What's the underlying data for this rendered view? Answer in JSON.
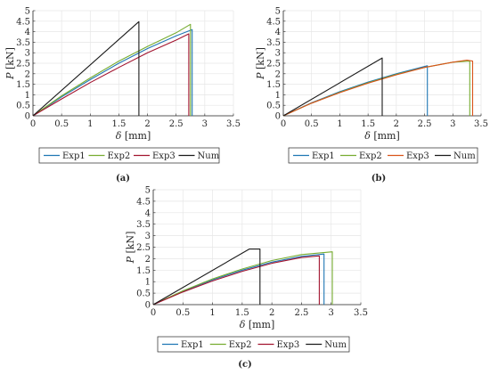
{
  "chart_data": [
    {
      "type": "line",
      "panel_label": "(a)",
      "xlabel_sym": "δ",
      "xlabel_unit": "[mm]",
      "ylabel_sym": "P",
      "ylabel_unit": "[kN]",
      "xlim": [
        0,
        3.5
      ],
      "ylim": [
        0,
        5
      ],
      "xticks": [
        "0",
        "0.5",
        "1",
        "1.5",
        "2",
        "2.5",
        "3",
        "3.5"
      ],
      "yticks": [
        "0",
        "0.5",
        "1",
        "1.5",
        "2",
        "2.5",
        "3",
        "3.5",
        "4",
        "4.5",
        "5"
      ],
      "grid": true,
      "legend_placement": "bottom",
      "series": [
        {
          "name": "Exp1",
          "color": "#1f77b4",
          "x": [
            0,
            0.5,
            1.0,
            1.5,
            2.0,
            2.5,
            2.78,
            2.78
          ],
          "y": [
            0,
            0.9,
            1.72,
            2.5,
            3.2,
            3.8,
            4.1,
            0
          ]
        },
        {
          "name": "Exp2",
          "color": "#77ac30",
          "x": [
            0,
            0.5,
            1.0,
            1.5,
            2.0,
            2.5,
            2.75,
            2.75
          ],
          "y": [
            0,
            0.95,
            1.8,
            2.6,
            3.3,
            3.95,
            4.35,
            0
          ]
        },
        {
          "name": "Exp3",
          "color": "#a2142f",
          "x": [
            0,
            0.5,
            1.0,
            1.5,
            2.0,
            2.5,
            2.72,
            2.72
          ],
          "y": [
            0,
            0.8,
            1.58,
            2.3,
            3.0,
            3.6,
            3.9,
            0
          ]
        },
        {
          "name": "Num",
          "color": "#1a1a1a",
          "x": [
            0,
            1.85,
            1.85
          ],
          "y": [
            0,
            4.48,
            0
          ]
        }
      ]
    },
    {
      "type": "line",
      "panel_label": "(b)",
      "xlabel_sym": "δ",
      "xlabel_unit": "[mm]",
      "ylabel_sym": "P",
      "ylabel_unit": "[kN]",
      "xlim": [
        0,
        3.5
      ],
      "ylim": [
        0,
        5
      ],
      "xticks": [
        "0",
        "0.5",
        "1",
        "1.5",
        "2",
        "2.5",
        "3",
        "3.5"
      ],
      "yticks": [
        "0",
        "0.5",
        "1",
        "1.5",
        "2",
        "2.5",
        "3",
        "3.5",
        "4",
        "4.5",
        "5"
      ],
      "grid": true,
      "legend_placement": "bottom",
      "series": [
        {
          "name": "Exp1",
          "color": "#1f77b4",
          "x": [
            0,
            0.5,
            1.0,
            1.5,
            2.0,
            2.55,
            2.55
          ],
          "y": [
            0,
            0.62,
            1.15,
            1.6,
            2.0,
            2.38,
            0
          ]
        },
        {
          "name": "Exp2",
          "color": "#77ac30",
          "x": [
            0,
            0.5,
            1.0,
            1.5,
            2.0,
            2.5,
            3.0,
            3.3,
            3.3
          ],
          "y": [
            0,
            0.6,
            1.12,
            1.57,
            1.97,
            2.3,
            2.55,
            2.6,
            0
          ]
        },
        {
          "name": "Exp3",
          "color": "#d95319",
          "x": [
            0,
            0.5,
            1.0,
            1.5,
            2.0,
            2.5,
            3.0,
            3.25,
            3.35,
            3.35
          ],
          "y": [
            0,
            0.6,
            1.1,
            1.55,
            1.95,
            2.3,
            2.55,
            2.65,
            2.6,
            0
          ]
        },
        {
          "name": "Num",
          "color": "#1a1a1a",
          "x": [
            0,
            1.75,
            1.75
          ],
          "y": [
            0,
            2.75,
            0
          ]
        }
      ]
    },
    {
      "type": "line",
      "panel_label": "(c)",
      "xlabel_sym": "δ",
      "xlabel_unit": "[mm]",
      "ylabel_sym": "P",
      "ylabel_unit": "[kN]",
      "xlim": [
        0,
        3.5
      ],
      "ylim": [
        0,
        5
      ],
      "xticks": [
        "0",
        "0.5",
        "1",
        "1.5",
        "2",
        "2.5",
        "3",
        "3.5"
      ],
      "yticks": [
        "0",
        "0.5",
        "1",
        "1.5",
        "2",
        "2.5",
        "3",
        "3.5",
        "4",
        "4.5",
        "5"
      ],
      "grid": true,
      "legend_placement": "bottom",
      "series": [
        {
          "name": "Exp1",
          "color": "#1f77b4",
          "x": [
            0,
            0.5,
            1.0,
            1.5,
            2.0,
            2.5,
            2.88,
            2.88
          ],
          "y": [
            0,
            0.58,
            1.08,
            1.5,
            1.85,
            2.1,
            2.2,
            0
          ]
        },
        {
          "name": "Exp2",
          "color": "#77ac30",
          "x": [
            0,
            0.5,
            1.0,
            1.5,
            2.0,
            2.5,
            3.02,
            3.02
          ],
          "y": [
            0,
            0.6,
            1.12,
            1.55,
            1.92,
            2.18,
            2.3,
            0
          ]
        },
        {
          "name": "Exp3",
          "color": "#a2142f",
          "x": [
            0,
            0.5,
            1.0,
            1.5,
            2.0,
            2.5,
            2.8,
            2.8
          ],
          "y": [
            0,
            0.55,
            1.03,
            1.45,
            1.8,
            2.05,
            2.12,
            0
          ]
        },
        {
          "name": "Num",
          "color": "#1a1a1a",
          "x": [
            0,
            1.62,
            1.8,
            1.8
          ],
          "y": [
            0,
            2.42,
            2.42,
            0
          ]
        }
      ]
    }
  ]
}
